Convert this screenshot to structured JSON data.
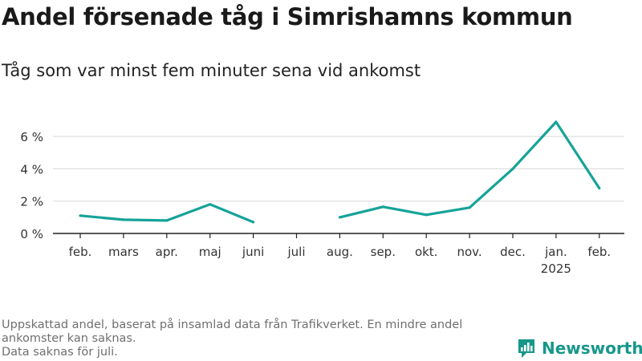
{
  "title": "Andel försenade tåg i Simrishamns kommun",
  "subtitle": "Tåg som var minst fem minuter sena vid ankomst",
  "footnote": {
    "line1": "Uppskattad andel, baserat på insamlad data från Trafikverket. En mindre andel",
    "line2": "ankomster kan saknas.",
    "line3": "Data saknas för juli."
  },
  "brand": {
    "name": "Newsworthy",
    "icon": "newsworthy-logo-icon",
    "color": "#16978a"
  },
  "colors": {
    "line": "#16a399",
    "grid": "#d9d9d9",
    "axis": "#222222",
    "text": "#333333"
  },
  "chart_data": {
    "type": "line",
    "categories": [
      "feb.",
      "mars",
      "apr.",
      "maj",
      "juni",
      "juli",
      "aug.",
      "sep.",
      "okt.",
      "nov.",
      "dec.",
      "jan.",
      "feb."
    ],
    "category_sublabels": [
      "",
      "",
      "",
      "",
      "",
      "",
      "",
      "",
      "",
      "",
      "",
      "2025",
      ""
    ],
    "values": [
      1.1,
      0.85,
      0.8,
      1.8,
      0.7,
      null,
      1.0,
      1.65,
      1.15,
      1.6,
      4.0,
      6.9,
      2.8
    ],
    "y_ticks": [
      0,
      2,
      4,
      6
    ],
    "y_tick_labels": [
      "0 %",
      "2 %",
      "4 %",
      "6 %"
    ],
    "ylim": [
      0,
      7
    ],
    "grid": true,
    "xlabel": "",
    "ylabel": ""
  }
}
